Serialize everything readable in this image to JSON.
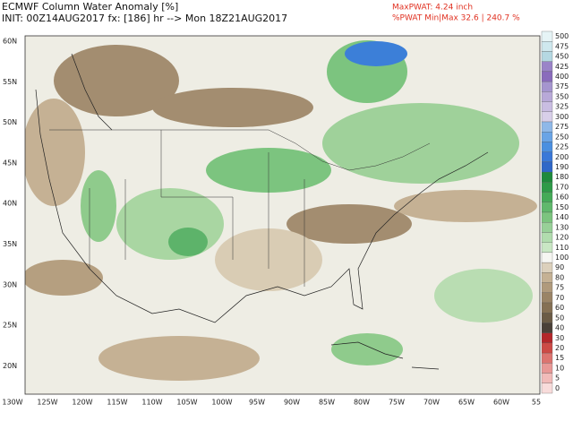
{
  "header": {
    "title": "ECMWF Column Water Anomaly [%]",
    "init": "INIT: 00Z14AUG2017 fx: [186] hr --> Mon 18Z21AUG2017"
  },
  "stats": {
    "max_pwat": "MaxPWAT: 4.24 inch",
    "min_max": "%PWAT Min|Max 32.6 | 240.7 %"
  },
  "map": {
    "lat_labels": [
      "60N",
      "55N",
      "50N",
      "45N",
      "40N",
      "35N",
      "30N",
      "25N",
      "20N"
    ],
    "lon_labels": [
      "130W",
      "125W",
      "120W",
      "115W",
      "110W",
      "105W",
      "100W",
      "95W",
      "90W",
      "85W",
      "80W",
      "75W",
      "70W",
      "65W",
      "60W",
      "55"
    ]
  },
  "colorbar": {
    "labels": [
      "500",
      "475",
      "450",
      "425",
      "400",
      "375",
      "350",
      "325",
      "300",
      "275",
      "250",
      "225",
      "200",
      "190",
      "180",
      "170",
      "160",
      "150",
      "140",
      "130",
      "120",
      "110",
      "100",
      "90",
      "80",
      "75",
      "70",
      "60",
      "50",
      "40",
      "30",
      "20",
      "15",
      "10",
      "5",
      "0"
    ]
  }
}
